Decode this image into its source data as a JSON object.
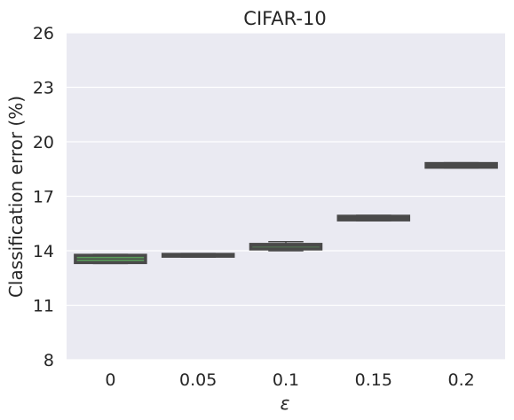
{
  "chart_data": {
    "type": "box",
    "title": "CIFAR-10",
    "xlabel": "ε",
    "ylabel": "Classification error (%)",
    "categories": [
      "0",
      "0.05",
      "0.1",
      "0.15",
      "0.2"
    ],
    "yticks": [
      8,
      11,
      14,
      17,
      20,
      23,
      26
    ],
    "ylim": [
      8,
      26
    ],
    "grid": true,
    "background_color": "#eaeaf2",
    "grid_color": "#ffffff",
    "box_edge_color": "#4a4a4a",
    "median_color": "#5a9e5a",
    "boxes": [
      {
        "category": "0",
        "whislo": 13.3,
        "q1": 13.35,
        "med": 13.55,
        "q3": 13.75,
        "whishi": 13.8
      },
      {
        "category": "0.05",
        "whislo": 13.65,
        "q1": 13.7,
        "med": 13.75,
        "q3": 13.8,
        "whishi": 13.85
      },
      {
        "category": "0.1",
        "whislo": 14.0,
        "q1": 14.1,
        "med": 14.25,
        "q3": 14.35,
        "whishi": 14.5
      },
      {
        "category": "0.15",
        "whislo": 15.65,
        "q1": 15.7,
        "med": 15.8,
        "q3": 15.9,
        "whishi": 15.95
      },
      {
        "category": "0.2",
        "whislo": 18.55,
        "q1": 18.6,
        "med": 18.7,
        "q3": 18.8,
        "whishi": 18.85
      }
    ]
  }
}
